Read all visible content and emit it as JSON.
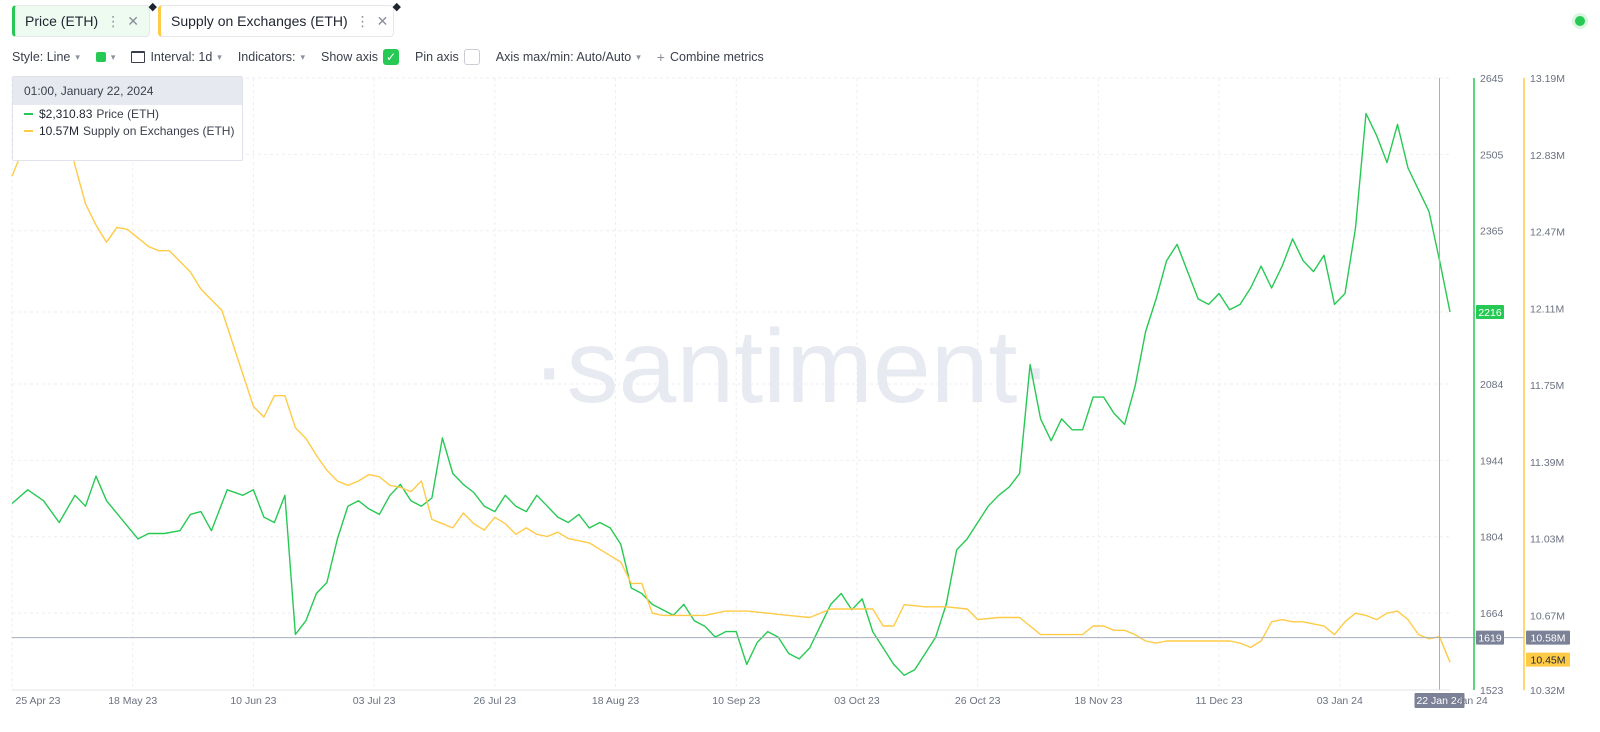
{
  "tabs": [
    {
      "label": "Price (ETH)",
      "color": "#26c953"
    },
    {
      "label": "Supply on Exchanges (ETH)",
      "color": "#ffcb47"
    }
  ],
  "toolbar": {
    "style": "Style: Line",
    "interval": "Interval: 1d",
    "indicators": "Indicators:",
    "show_axis": "Show axis",
    "pin_axis": "Pin axis",
    "axis_maxmin": "Axis max/min: Auto/Auto",
    "combine": "Combine metrics"
  },
  "tooltip": {
    "date": "01:00, January 22, 2024",
    "price_value": "$2,310.83",
    "price_label": "Price (ETH)",
    "supply_value": "10.57M",
    "supply_label": "Supply on Exchanges (ETH)"
  },
  "watermark": "·santiment·",
  "chart_data": {
    "type": "line",
    "x_tick_labels": [
      "25 Apr 23",
      "18 May 23",
      "10 Jun 23",
      "03 Jul 23",
      "26 Jul 23",
      "18 Aug 23",
      "10 Sep 23",
      "03 Oct 23",
      "26 Oct 23",
      "18 Nov 23",
      "11 Dec 23",
      "03 Jan 24",
      "22 Jan 24",
      "Jan 24"
    ],
    "x_ticks_day": [
      0,
      23,
      46,
      69,
      92,
      115,
      138,
      161,
      184,
      207,
      230,
      253,
      272,
      274
    ],
    "x_range_day": [
      0,
      274
    ],
    "price_axis": {
      "ticks": [
        2645,
        2505,
        2365,
        2216,
        2084,
        1944,
        1804,
        1664,
        1619,
        1523
      ],
      "range": [
        1523,
        2645
      ],
      "current_label": "2216",
      "crosshair_label": "1619"
    },
    "supply_axis": {
      "ticks": [
        "13.19M",
        "12.83M",
        "12.47M",
        "12.11M",
        "11.75M",
        "11.39M",
        "11.03M",
        "10.67M",
        "10.58M",
        "10.45M",
        "10.32M"
      ],
      "range": [
        10.32,
        13.19
      ],
      "crosshair_label": "10.58M",
      "current_label": "10.45M"
    },
    "crosshair_day": 272,
    "crosshair_price": 1619,
    "series": [
      {
        "name": "Price (ETH)",
        "color": "#26c953",
        "axis": "price",
        "points": [
          [
            0,
            1865
          ],
          [
            3,
            1890
          ],
          [
            6,
            1870
          ],
          [
            9,
            1830
          ],
          [
            12,
            1880
          ],
          [
            14,
            1860
          ],
          [
            16,
            1915
          ],
          [
            18,
            1870
          ],
          [
            21,
            1835
          ],
          [
            24,
            1800
          ],
          [
            26,
            1810
          ],
          [
            29,
            1810
          ],
          [
            32,
            1815
          ],
          [
            34,
            1845
          ],
          [
            36,
            1850
          ],
          [
            38,
            1815
          ],
          [
            41,
            1890
          ],
          [
            44,
            1880
          ],
          [
            46,
            1890
          ],
          [
            48,
            1840
          ],
          [
            50,
            1830
          ],
          [
            52,
            1880
          ],
          [
            54,
            1625
          ],
          [
            56,
            1650
          ],
          [
            58,
            1700
          ],
          [
            60,
            1720
          ],
          [
            62,
            1800
          ],
          [
            64,
            1860
          ],
          [
            66,
            1870
          ],
          [
            68,
            1855
          ],
          [
            70,
            1845
          ],
          [
            72,
            1880
          ],
          [
            74,
            1900
          ],
          [
            76,
            1870
          ],
          [
            78,
            1860
          ],
          [
            80,
            1875
          ],
          [
            82,
            1985
          ],
          [
            84,
            1920
          ],
          [
            86,
            1900
          ],
          [
            88,
            1885
          ],
          [
            90,
            1860
          ],
          [
            92,
            1850
          ],
          [
            94,
            1880
          ],
          [
            96,
            1860
          ],
          [
            98,
            1850
          ],
          [
            100,
            1880
          ],
          [
            102,
            1860
          ],
          [
            104,
            1840
          ],
          [
            106,
            1830
          ],
          [
            108,
            1845
          ],
          [
            110,
            1820
          ],
          [
            112,
            1830
          ],
          [
            114,
            1820
          ],
          [
            116,
            1790
          ],
          [
            118,
            1710
          ],
          [
            120,
            1700
          ],
          [
            122,
            1680
          ],
          [
            124,
            1670
          ],
          [
            126,
            1660
          ],
          [
            128,
            1680
          ],
          [
            130,
            1650
          ],
          [
            132,
            1640
          ],
          [
            134,
            1620
          ],
          [
            136,
            1630
          ],
          [
            138,
            1630
          ],
          [
            140,
            1570
          ],
          [
            142,
            1610
          ],
          [
            144,
            1630
          ],
          [
            146,
            1620
          ],
          [
            148,
            1590
          ],
          [
            150,
            1580
          ],
          [
            152,
            1600
          ],
          [
            154,
            1640
          ],
          [
            156,
            1680
          ],
          [
            158,
            1700
          ],
          [
            160,
            1670
          ],
          [
            162,
            1690
          ],
          [
            164,
            1630
          ],
          [
            166,
            1600
          ],
          [
            168,
            1570
          ],
          [
            170,
            1550
          ],
          [
            172,
            1560
          ],
          [
            174,
            1590
          ],
          [
            176,
            1620
          ],
          [
            178,
            1680
          ],
          [
            180,
            1780
          ],
          [
            182,
            1800
          ],
          [
            184,
            1830
          ],
          [
            186,
            1860
          ],
          [
            188,
            1880
          ],
          [
            190,
            1895
          ],
          [
            192,
            1920
          ],
          [
            194,
            2120
          ],
          [
            196,
            2020
          ],
          [
            198,
            1980
          ],
          [
            200,
            2020
          ],
          [
            202,
            2000
          ],
          [
            204,
            2000
          ],
          [
            206,
            2060
          ],
          [
            208,
            2060
          ],
          [
            210,
            2030
          ],
          [
            212,
            2010
          ],
          [
            214,
            2080
          ],
          [
            216,
            2180
          ],
          [
            218,
            2240
          ],
          [
            220,
            2310
          ],
          [
            222,
            2340
          ],
          [
            224,
            2290
          ],
          [
            226,
            2240
          ],
          [
            228,
            2230
          ],
          [
            230,
            2250
          ],
          [
            232,
            2220
          ],
          [
            234,
            2230
          ],
          [
            236,
            2260
          ],
          [
            238,
            2300
          ],
          [
            240,
            2260
          ],
          [
            242,
            2300
          ],
          [
            244,
            2350
          ],
          [
            246,
            2310
          ],
          [
            248,
            2290
          ],
          [
            250,
            2320
          ],
          [
            252,
            2230
          ],
          [
            254,
            2250
          ],
          [
            256,
            2370
          ],
          [
            258,
            2580
          ],
          [
            260,
            2540
          ],
          [
            262,
            2490
          ],
          [
            264,
            2560
          ],
          [
            266,
            2480
          ],
          [
            268,
            2440
          ],
          [
            270,
            2400
          ],
          [
            272,
            2311
          ],
          [
            274,
            2216
          ]
        ]
      },
      {
        "name": "Supply on Exchanges (ETH)",
        "color": "#ffcb47",
        "axis": "supply",
        "points": [
          [
            0,
            12.73
          ],
          [
            2,
            12.85
          ],
          [
            4,
            12.9
          ],
          [
            6,
            12.91
          ],
          [
            8,
            13.0
          ],
          [
            10,
            12.98
          ],
          [
            12,
            12.78
          ],
          [
            14,
            12.6
          ],
          [
            16,
            12.5
          ],
          [
            18,
            12.42
          ],
          [
            20,
            12.49
          ],
          [
            22,
            12.48
          ],
          [
            24,
            12.44
          ],
          [
            26,
            12.4
          ],
          [
            28,
            12.38
          ],
          [
            30,
            12.38
          ],
          [
            32,
            12.33
          ],
          [
            34,
            12.28
          ],
          [
            36,
            12.2
          ],
          [
            38,
            12.15
          ],
          [
            40,
            12.1
          ],
          [
            42,
            11.95
          ],
          [
            44,
            11.8
          ],
          [
            46,
            11.65
          ],
          [
            48,
            11.6
          ],
          [
            50,
            11.7
          ],
          [
            52,
            11.7
          ],
          [
            54,
            11.55
          ],
          [
            56,
            11.5
          ],
          [
            58,
            11.42
          ],
          [
            60,
            11.35
          ],
          [
            62,
            11.3
          ],
          [
            64,
            11.28
          ],
          [
            66,
            11.3
          ],
          [
            68,
            11.33
          ],
          [
            70,
            11.32
          ],
          [
            72,
            11.28
          ],
          [
            74,
            11.27
          ],
          [
            76,
            11.25
          ],
          [
            78,
            11.3
          ],
          [
            80,
            11.12
          ],
          [
            82,
            11.1
          ],
          [
            84,
            11.08
          ],
          [
            86,
            11.15
          ],
          [
            88,
            11.1
          ],
          [
            90,
            11.07
          ],
          [
            92,
            11.13
          ],
          [
            94,
            11.1
          ],
          [
            96,
            11.05
          ],
          [
            98,
            11.08
          ],
          [
            100,
            11.05
          ],
          [
            102,
            11.04
          ],
          [
            104,
            11.06
          ],
          [
            106,
            11.03
          ],
          [
            108,
            11.02
          ],
          [
            110,
            11.01
          ],
          [
            112,
            10.98
          ],
          [
            114,
            10.95
          ],
          [
            116,
            10.92
          ],
          [
            118,
            10.82
          ],
          [
            120,
            10.82
          ],
          [
            122,
            10.68
          ],
          [
            124,
            10.67
          ],
          [
            128,
            10.67
          ],
          [
            132,
            10.67
          ],
          [
            136,
            10.69
          ],
          [
            140,
            10.69
          ],
          [
            144,
            10.68
          ],
          [
            148,
            10.67
          ],
          [
            152,
            10.66
          ],
          [
            156,
            10.7
          ],
          [
            160,
            10.7
          ],
          [
            164,
            10.7
          ],
          [
            166,
            10.62
          ],
          [
            168,
            10.62
          ],
          [
            170,
            10.72
          ],
          [
            174,
            10.71
          ],
          [
            178,
            10.71
          ],
          [
            182,
            10.7
          ],
          [
            184,
            10.65
          ],
          [
            188,
            10.66
          ],
          [
            192,
            10.66
          ],
          [
            196,
            10.58
          ],
          [
            200,
            10.58
          ],
          [
            204,
            10.58
          ],
          [
            206,
            10.62
          ],
          [
            208,
            10.62
          ],
          [
            210,
            10.6
          ],
          [
            212,
            10.6
          ],
          [
            214,
            10.58
          ],
          [
            216,
            10.55
          ],
          [
            218,
            10.54
          ],
          [
            220,
            10.55
          ],
          [
            224,
            10.55
          ],
          [
            228,
            10.55
          ],
          [
            232,
            10.55
          ],
          [
            234,
            10.54
          ],
          [
            236,
            10.52
          ],
          [
            238,
            10.55
          ],
          [
            240,
            10.64
          ],
          [
            242,
            10.65
          ],
          [
            244,
            10.64
          ],
          [
            246,
            10.64
          ],
          [
            248,
            10.63
          ],
          [
            250,
            10.62
          ],
          [
            252,
            10.58
          ],
          [
            254,
            10.64
          ],
          [
            256,
            10.68
          ],
          [
            258,
            10.67
          ],
          [
            260,
            10.65
          ],
          [
            262,
            10.68
          ],
          [
            264,
            10.69
          ],
          [
            266,
            10.65
          ],
          [
            268,
            10.58
          ],
          [
            270,
            10.56
          ],
          [
            272,
            10.57
          ],
          [
            274,
            10.45
          ]
        ]
      }
    ]
  }
}
